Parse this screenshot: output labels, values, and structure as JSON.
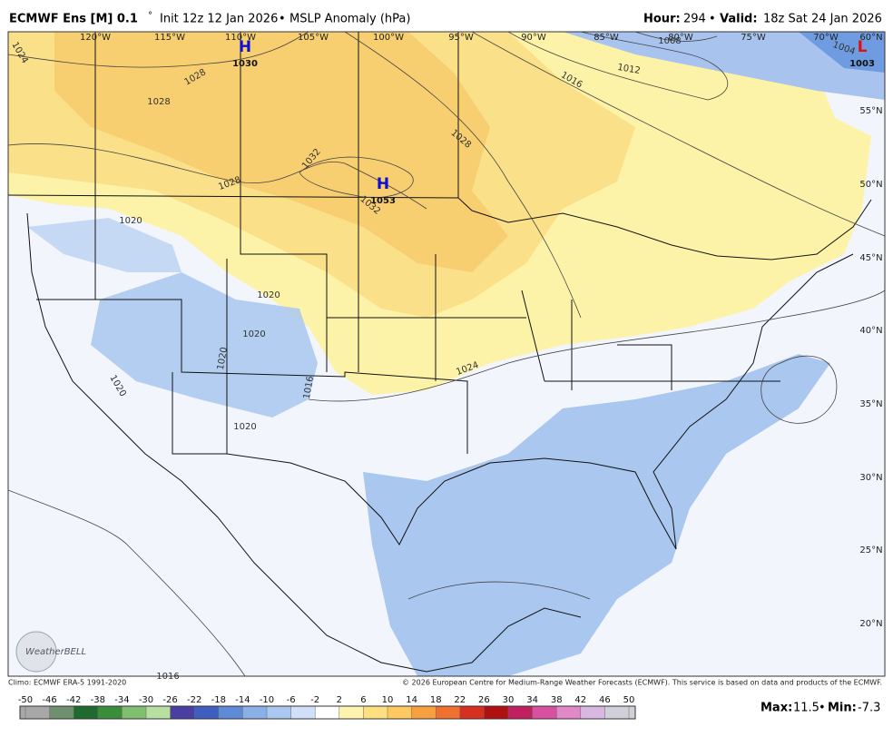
{
  "header": {
    "model": "ECMWF Ens [M] 0.1",
    "degree": "°",
    "init": "Init 12z 12 Jan 2026",
    "separator": "•",
    "field": "MSLP Anomaly (hPa)",
    "hour_label": "Hour:",
    "hour": "294",
    "valid_label": "Valid:",
    "valid": "18z Sat 24 Jan 2026"
  },
  "map": {
    "longitudes": [
      "120°W",
      "115°W",
      "110°W",
      "105°W",
      "100°W",
      "95°W",
      "90°W",
      "85°W",
      "80°W",
      "75°W",
      "70°W"
    ],
    "latitudes": [
      "60°N",
      "55°N",
      "50°N",
      "45°N",
      "40°N",
      "35°N",
      "30°N",
      "25°N",
      "20°N"
    ],
    "pressure_centers": [
      {
        "letter": "H",
        "value": "1030"
      },
      {
        "letter": "H",
        "value": "1053"
      },
      {
        "letter": "L",
        "value": "1003"
      }
    ],
    "isobar_labels": [
      "1024",
      "1028",
      "1028",
      "1028",
      "1032",
      "1032",
      "1028",
      "1016",
      "1012",
      "1008",
      "1004",
      "1020",
      "1020",
      "1020",
      "1020",
      "1020",
      "1016",
      "1020",
      "1024",
      "1016"
    ],
    "logo": "WeatherBELL"
  },
  "footer": {
    "climo": "Climo: ECMWF ERA-5 1991-2020",
    "copyright": "© 2026 European Centre for Medium-Range Weather Forecasts (ECMWF). This service is based on data and products of the ECMWF.",
    "colorbar": {
      "ticks": [
        -50,
        -46,
        -42,
        -38,
        -34,
        -30,
        -26,
        -22,
        -18,
        -14,
        -10,
        -6,
        -2,
        2,
        6,
        10,
        14,
        18,
        22,
        26,
        30,
        34,
        38,
        42,
        46,
        50
      ],
      "colors": [
        "#a8a8a8",
        "#6f8f6f",
        "#1f6b2f",
        "#3a8d3a",
        "#7fbf6f",
        "#b7dfa0",
        "#4a3fa0",
        "#3f5fc0",
        "#5f8ad8",
        "#8ab0e8",
        "#aac8f0",
        "#d0e0f8",
        "#ffffff",
        "#fff3b0",
        "#ffe080",
        "#ffc860",
        "#f8a040",
        "#f07030",
        "#d83020",
        "#b01010",
        "#c02060",
        "#d850a0",
        "#e088c8",
        "#d8b8e0",
        "#d0d0d8"
      ]
    },
    "max_label": "Max:",
    "max": 11.5,
    "min_label": "Min:",
    "min": -7.3
  }
}
